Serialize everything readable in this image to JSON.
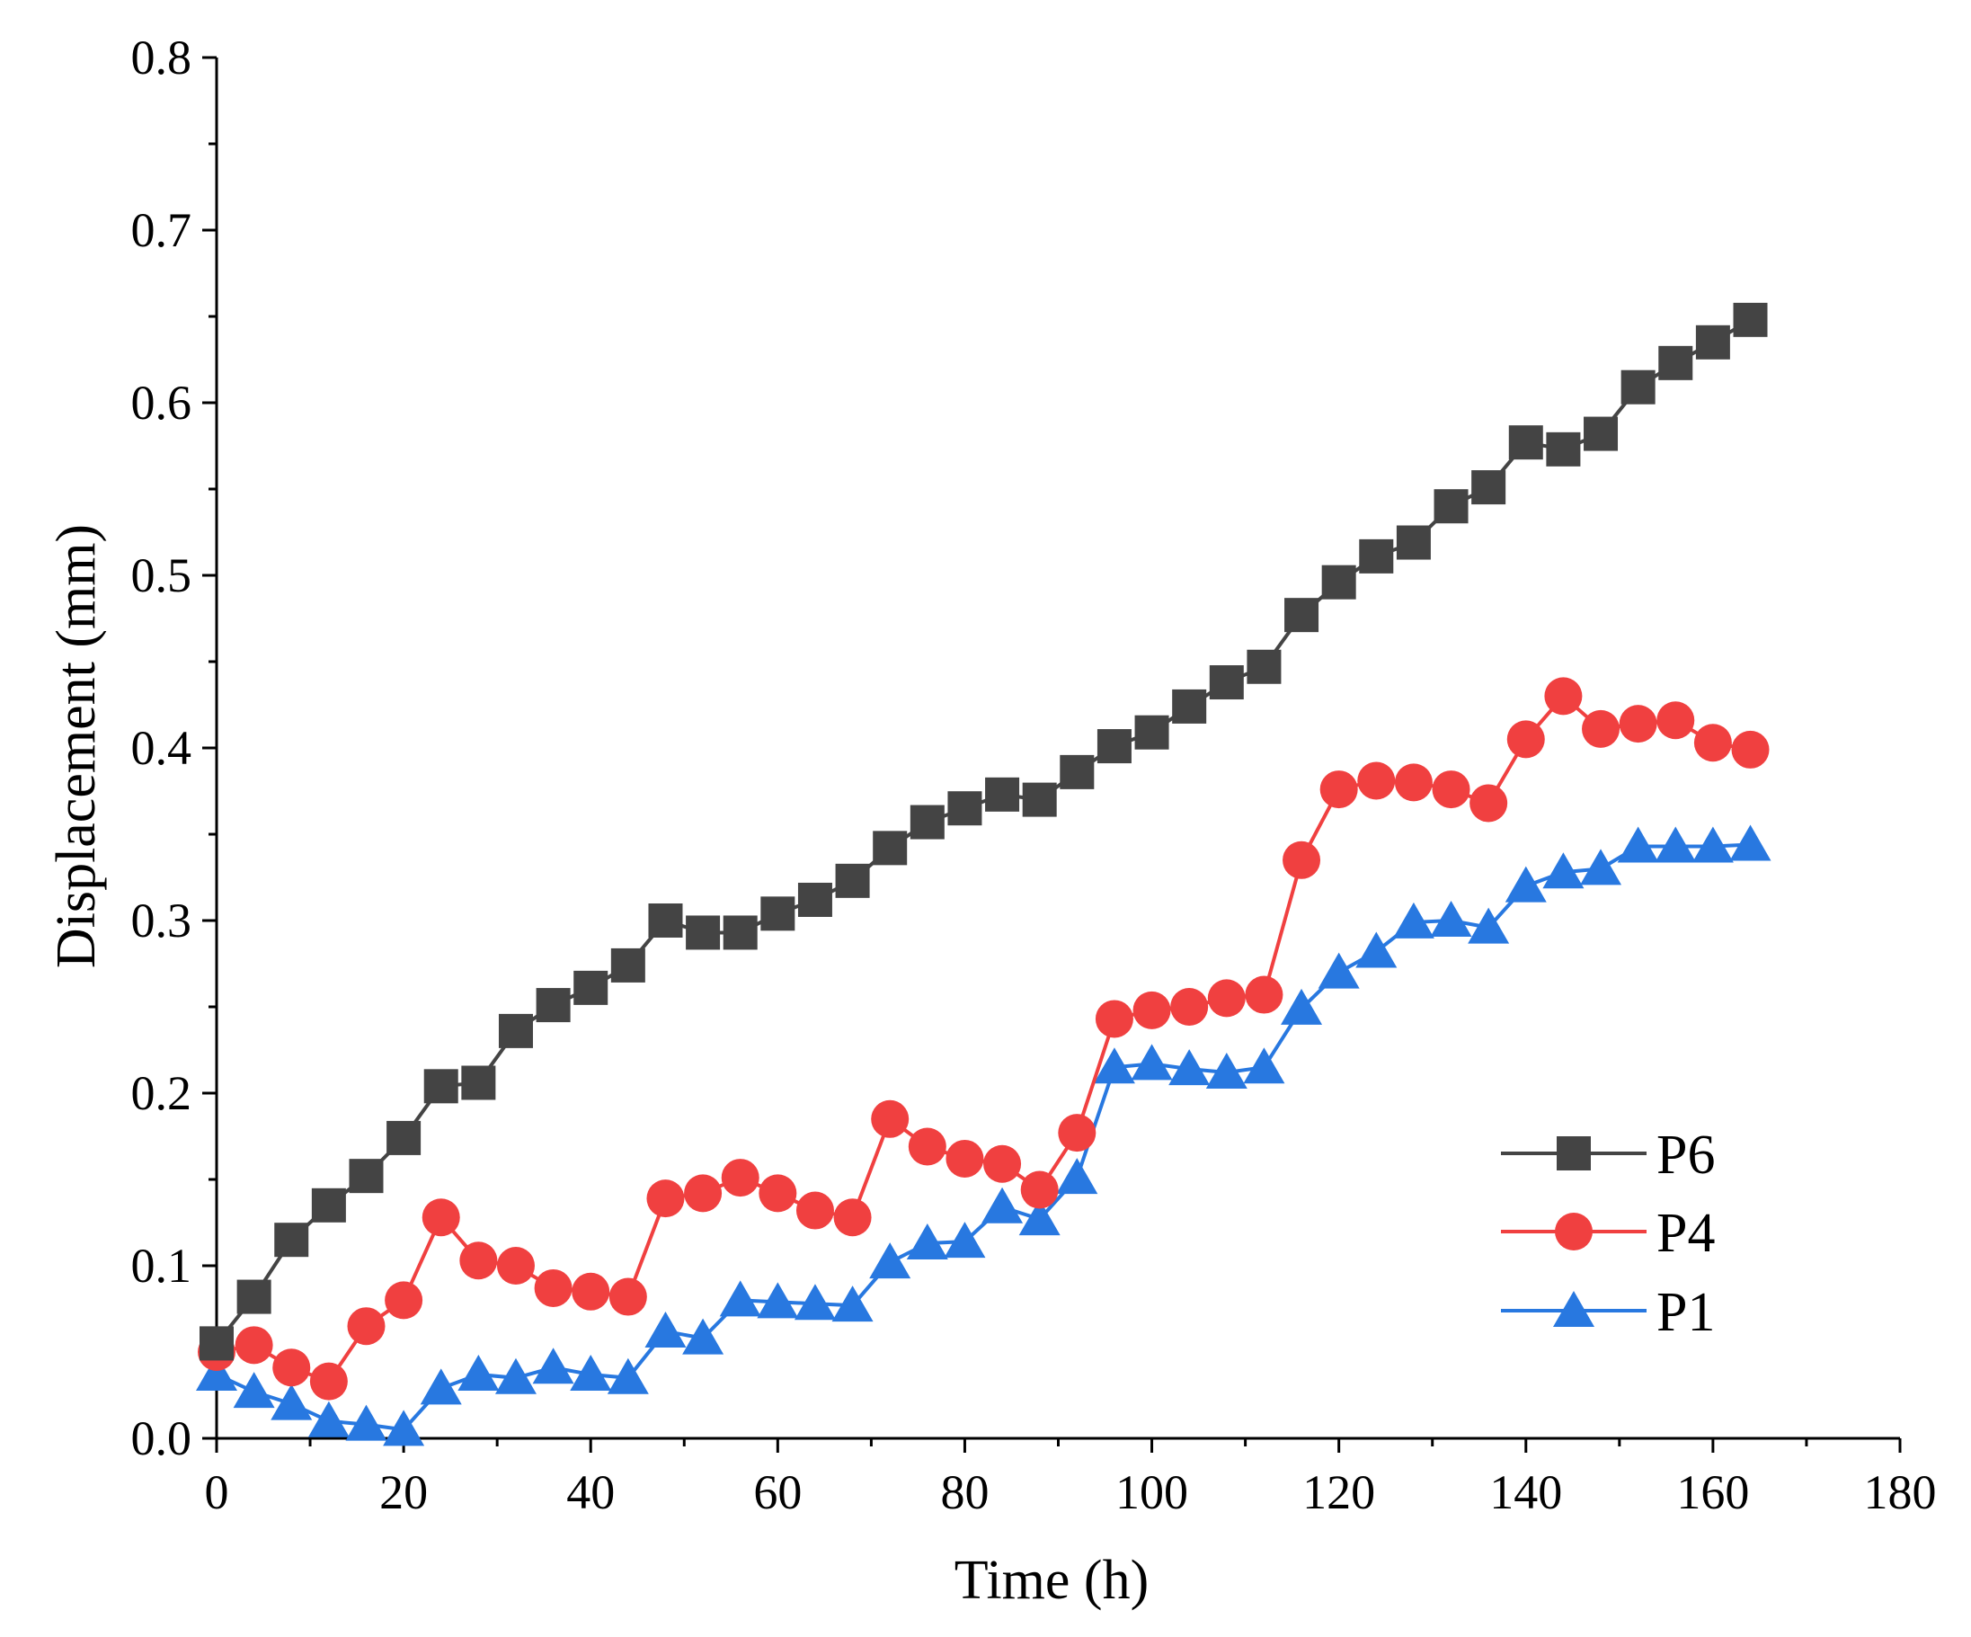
{
  "chart_data": {
    "type": "line",
    "title": "",
    "xlabel": "Time (h)",
    "ylabel": "Displacement (mm)",
    "xlim": [
      0,
      180
    ],
    "ylim": [
      0,
      0.8
    ],
    "xticks": [
      0,
      20,
      40,
      60,
      80,
      100,
      120,
      140,
      160,
      180
    ],
    "xtick_labels": [
      "0",
      "20",
      "40",
      "60",
      "80",
      "100",
      "120",
      "140",
      "160",
      "180"
    ],
    "yticks": [
      0.0,
      0.1,
      0.2,
      0.3,
      0.4,
      0.5,
      0.6,
      0.7,
      0.8
    ],
    "ytick_labels": [
      "0.0",
      "0.1",
      "0.2",
      "0.3",
      "0.4",
      "0.5",
      "0.6",
      "0.7",
      "0.8"
    ],
    "grid": false,
    "legend_position": "bottom-right",
    "series": [
      {
        "name": "P6",
        "marker": "square",
        "color": "#444444",
        "x": [
          0,
          4,
          8,
          12,
          16,
          20,
          24,
          28,
          32,
          36,
          40,
          44,
          48,
          52,
          56,
          60,
          64,
          68,
          72,
          76,
          80,
          84,
          88,
          92,
          96,
          100,
          104,
          108,
          112,
          116,
          120,
          124,
          128,
          132,
          136,
          140,
          144,
          148,
          152,
          156,
          160,
          164
        ],
        "y": [
          0.055,
          0.082,
          0.115,
          0.135,
          0.152,
          0.174,
          0.204,
          0.206,
          0.236,
          0.251,
          0.261,
          0.274,
          0.3,
          0.293,
          0.293,
          0.304,
          0.312,
          0.323,
          0.342,
          0.357,
          0.365,
          0.373,
          0.37,
          0.386,
          0.401,
          0.409,
          0.424,
          0.438,
          0.447,
          0.477,
          0.496,
          0.511,
          0.519,
          0.54,
          0.551,
          0.577,
          0.573,
          0.582,
          0.609,
          0.623,
          0.635,
          0.648
        ]
      },
      {
        "name": "P4",
        "marker": "circle",
        "color": "#f04040",
        "x": [
          0,
          4,
          8,
          12,
          16,
          20,
          24,
          28,
          32,
          36,
          40,
          44,
          48,
          52,
          56,
          60,
          64,
          68,
          72,
          76,
          80,
          84,
          88,
          92,
          96,
          100,
          104,
          108,
          112,
          116,
          120,
          124,
          128,
          132,
          136,
          140,
          144,
          148,
          152,
          156,
          160,
          164
        ],
        "y": [
          0.05,
          0.054,
          0.041,
          0.033,
          0.065,
          0.08,
          0.128,
          0.103,
          0.1,
          0.087,
          0.085,
          0.082,
          0.139,
          0.142,
          0.151,
          0.142,
          0.132,
          0.128,
          0.185,
          0.169,
          0.162,
          0.159,
          0.144,
          0.177,
          0.243,
          0.248,
          0.25,
          0.255,
          0.257,
          0.335,
          0.376,
          0.381,
          0.38,
          0.376,
          0.368,
          0.405,
          0.43,
          0.411,
          0.414,
          0.416,
          0.403,
          0.399
        ]
      },
      {
        "name": "P1",
        "marker": "triangle",
        "color": "#2878e0",
        "x": [
          0,
          4,
          8,
          12,
          16,
          20,
          24,
          28,
          32,
          36,
          40,
          44,
          48,
          52,
          56,
          60,
          64,
          68,
          72,
          76,
          80,
          84,
          88,
          92,
          96,
          100,
          104,
          108,
          112,
          116,
          120,
          124,
          128,
          132,
          136,
          140,
          144,
          148,
          152,
          156,
          160,
          164
        ],
        "y": [
          0.037,
          0.027,
          0.02,
          0.01,
          0.008,
          0.005,
          0.029,
          0.037,
          0.035,
          0.041,
          0.037,
          0.035,
          0.062,
          0.058,
          0.08,
          0.079,
          0.078,
          0.077,
          0.102,
          0.113,
          0.114,
          0.134,
          0.127,
          0.151,
          0.215,
          0.217,
          0.214,
          0.212,
          0.215,
          0.249,
          0.27,
          0.282,
          0.299,
          0.3,
          0.296,
          0.32,
          0.328,
          0.33,
          0.343,
          0.343,
          0.343,
          0.344
        ]
      }
    ]
  }
}
